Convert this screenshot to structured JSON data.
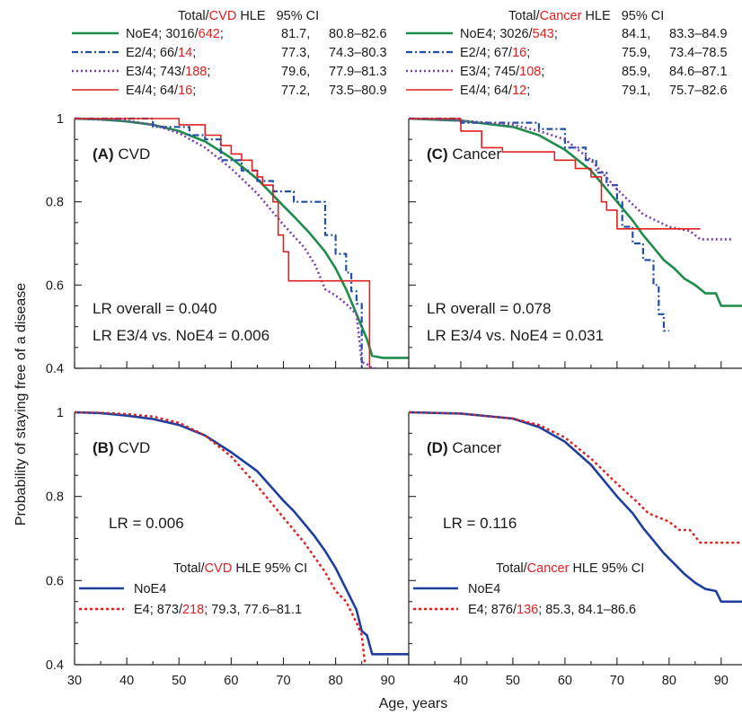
{
  "figure": {
    "ylabel": "Probability of staying free of a disease",
    "xlabel": "Age, years",
    "colors": {
      "NoE4": "#1e8c4a",
      "E2/4": "#1f4fa6",
      "E3/4": "#7b3fb0",
      "E4/4": "#e02020",
      "NoE4_pooled": "#1f3f9e",
      "E4_pooled": "#e02020",
      "highlight": "#e02020"
    }
  },
  "legend_top_left": {
    "header": {
      "pre": "Total/",
      "event": "CVD",
      "post": " HLE   95% CI"
    },
    "rows": [
      {
        "name": "NoE4;",
        "total": "3016/",
        "events": "642",
        "rest": ";",
        "hle": "81.7,",
        "ci": "80.8–82.6"
      },
      {
        "name": "E2/4;",
        "total": "66/",
        "events": "14",
        "rest": ";",
        "hle": "77.3,",
        "ci": "74.3–80.3"
      },
      {
        "name": "E3/4;",
        "total": "743/",
        "events": "188",
        "rest": ";",
        "hle": "79.6,",
        "ci": "77.9–81.3"
      },
      {
        "name": "E4/4;",
        "total": "64/",
        "events": "16",
        "rest": ";",
        "hle": "77.2,",
        "ci": "73.5–80.9"
      }
    ]
  },
  "legend_top_right": {
    "header": {
      "pre": "Total/",
      "event": "Cancer",
      "post": " HLE   95% CI"
    },
    "rows": [
      {
        "name": "NoE4;",
        "total": "3026/",
        "events": "543",
        "rest": ";",
        "hle": "84.1,",
        "ci": "83.3–84.9"
      },
      {
        "name": "E2/4;",
        "total": "67/",
        "events": "16",
        "rest": ";",
        "hle": "75.9,",
        "ci": "73.4–78.5"
      },
      {
        "name": "E3/4;",
        "total": "745/",
        "events": "108",
        "rest": ";",
        "hle": "85.9,",
        "ci": "84.6–87.1"
      },
      {
        "name": "E4/4;",
        "total": "64/",
        "events": "12",
        "rest": ";",
        "hle": "79.1,",
        "ci": "75.7–82.6"
      }
    ]
  },
  "chart_data": [
    {
      "type": "line",
      "panel": "A",
      "label_letter": "(A)",
      "label_text": " CVD",
      "annotations": [
        "LR overall = 0.040",
        "LR E3/4 vs. NoE4 = 0.006"
      ],
      "xlim": [
        30,
        94
      ],
      "ylim": [
        0.4,
        1.0
      ],
      "xticks": [
        30,
        40,
        50,
        60,
        70,
        80,
        90
      ],
      "yticks": [
        0.4,
        0.6,
        0.8,
        1
      ],
      "series": [
        {
          "name": "NoE4",
          "step": false,
          "x": [
            30,
            35,
            40,
            45,
            50,
            55,
            60,
            65,
            70,
            72,
            75,
            78,
            80,
            82,
            83,
            84,
            85,
            86,
            87,
            89,
            92,
            94
          ],
          "y": [
            1.0,
            0.998,
            0.993,
            0.985,
            0.97,
            0.945,
            0.905,
            0.855,
            0.79,
            0.765,
            0.725,
            0.68,
            0.64,
            0.59,
            0.56,
            0.53,
            0.5,
            0.47,
            0.43,
            0.425,
            0.425,
            0.425
          ]
        },
        {
          "name": "E2/4",
          "step": true,
          "x": [
            30,
            45,
            52,
            55,
            58,
            62,
            65,
            68,
            72,
            76,
            78,
            80,
            82,
            83,
            84,
            85
          ],
          "y": [
            1.0,
            0.98,
            0.96,
            0.95,
            0.9,
            0.875,
            0.85,
            0.825,
            0.8,
            0.8,
            0.72,
            0.675,
            0.63,
            0.585,
            0.555,
            0.4
          ]
        },
        {
          "name": "E3/4",
          "step": false,
          "x": [
            30,
            40,
            45,
            50,
            55,
            60,
            65,
            70,
            74,
            76,
            78,
            80,
            82,
            84,
            85,
            86,
            87,
            88
          ],
          "y": [
            1.0,
            0.995,
            0.985,
            0.965,
            0.93,
            0.88,
            0.82,
            0.745,
            0.69,
            0.65,
            0.59,
            0.575,
            0.555,
            0.53,
            0.415,
            0.41,
            0.4,
            0.4
          ]
        },
        {
          "name": "E4/4",
          "step": true,
          "x": [
            30,
            50,
            55,
            58,
            60,
            62,
            64,
            65,
            66,
            68,
            69,
            70,
            71,
            72,
            74,
            86,
            86.5
          ],
          "y": [
            1.0,
            0.985,
            0.96,
            0.935,
            0.915,
            0.9,
            0.875,
            0.86,
            0.84,
            0.8,
            0.72,
            0.68,
            0.61,
            0.61,
            0.61,
            0.61,
            0.4
          ]
        }
      ]
    },
    {
      "type": "line",
      "panel": "C",
      "label_letter": "(C)",
      "label_text": " Cancer",
      "annotations": [
        "LR overall = 0.078",
        "LR E3/4 vs. NoE4 = 0.031"
      ],
      "xlim": [
        30,
        94
      ],
      "ylim": [
        0.4,
        1.0
      ],
      "xticks": [
        30,
        40,
        50,
        60,
        70,
        80,
        90
      ],
      "yticks": [
        0.4,
        0.6,
        0.8,
        1
      ],
      "series": [
        {
          "name": "NoE4",
          "step": false,
          "x": [
            30,
            40,
            50,
            55,
            60,
            65,
            70,
            73,
            75,
            77,
            79,
            81,
            83,
            85,
            87,
            89,
            90,
            94
          ],
          "y": [
            1.0,
            0.995,
            0.98,
            0.96,
            0.925,
            0.875,
            0.8,
            0.755,
            0.72,
            0.69,
            0.66,
            0.64,
            0.615,
            0.6,
            0.58,
            0.58,
            0.55,
            0.55
          ]
        },
        {
          "name": "E2/4",
          "step": true,
          "x": [
            30,
            40,
            55,
            60,
            64,
            66,
            68,
            70,
            71,
            73,
            75,
            77,
            78,
            79,
            80
          ],
          "y": [
            1.0,
            0.99,
            0.975,
            0.93,
            0.9,
            0.87,
            0.84,
            0.8,
            0.74,
            0.7,
            0.66,
            0.6,
            0.53,
            0.49,
            0.49
          ]
        },
        {
          "name": "E3/4",
          "step": false,
          "x": [
            30,
            40,
            50,
            55,
            60,
            65,
            70,
            75,
            80,
            84,
            86,
            88,
            90,
            92
          ],
          "y": [
            1.0,
            0.995,
            0.985,
            0.97,
            0.95,
            0.9,
            0.83,
            0.77,
            0.74,
            0.73,
            0.71,
            0.71,
            0.71,
            0.71
          ]
        },
        {
          "name": "E4/4",
          "step": true,
          "x": [
            30,
            40,
            44,
            48,
            52,
            58,
            62,
            65,
            67,
            68,
            70,
            72,
            86
          ],
          "y": [
            1.0,
            0.97,
            0.93,
            0.92,
            0.92,
            0.9,
            0.88,
            0.86,
            0.8,
            0.78,
            0.735,
            0.735,
            0.735
          ]
        }
      ]
    },
    {
      "type": "line",
      "panel": "B",
      "label_letter": "(B)",
      "label_text": " CVD",
      "annotations": [
        "LR = 0.006"
      ],
      "legend": {
        "header": {
          "pre": "Total/",
          "event": "CVD",
          "post": " HLE   95% CI"
        },
        "rows": [
          {
            "text": "NoE4"
          },
          {
            "pre": "E4; 873/",
            "events": "218",
            "post": "; 79.3, 77.6–81.1"
          }
        ]
      },
      "xlim": [
        30,
        94
      ],
      "ylim": [
        0.4,
        1.0
      ],
      "xticks": [
        30,
        40,
        50,
        60,
        70,
        80,
        90
      ],
      "yticks": [
        0.4,
        0.6,
        0.8,
        1
      ],
      "series": [
        {
          "name": "NoE4",
          "step": false,
          "x": [
            30,
            35,
            40,
            45,
            50,
            55,
            60,
            65,
            70,
            72,
            74,
            76,
            78,
            80,
            82,
            84,
            85,
            86,
            87,
            89,
            94
          ],
          "y": [
            1.0,
            0.998,
            0.992,
            0.984,
            0.97,
            0.945,
            0.905,
            0.86,
            0.79,
            0.765,
            0.735,
            0.705,
            0.67,
            0.63,
            0.58,
            0.53,
            0.48,
            0.47,
            0.425,
            0.425,
            0.425
          ]
        },
        {
          "name": "E4",
          "step": false,
          "x": [
            30,
            35,
            40,
            45,
            50,
            55,
            60,
            65,
            68,
            70,
            72,
            74,
            76,
            78,
            80,
            82,
            84,
            85,
            86,
            87,
            94
          ],
          "y": [
            1.0,
            0.999,
            0.996,
            0.99,
            0.975,
            0.945,
            0.895,
            0.825,
            0.78,
            0.75,
            0.72,
            0.69,
            0.655,
            0.62,
            0.575,
            0.55,
            0.5,
            0.47,
            0.36,
            0.35,
            0.35
          ]
        }
      ]
    },
    {
      "type": "line",
      "panel": "D",
      "label_letter": "(D)",
      "label_text": " Cancer",
      "annotations": [
        "LR = 0.116"
      ],
      "legend": {
        "header": {
          "pre": "Total/",
          "event": "Cancer",
          "post": " HLE   95% CI"
        },
        "rows": [
          {
            "text": "NoE4"
          },
          {
            "pre": "E4; 876/",
            "events": "136",
            "post": "; 85.3, 84.1–86.6"
          }
        ]
      },
      "xlim": [
        30,
        94
      ],
      "ylim": [
        0.4,
        1.0
      ],
      "xticks": [
        30,
        40,
        50,
        60,
        70,
        80,
        90
      ],
      "yticks": [
        0.4,
        0.6,
        0.8,
        1
      ],
      "series": [
        {
          "name": "NoE4",
          "step": false,
          "x": [
            30,
            40,
            50,
            55,
            60,
            65,
            70,
            73,
            75,
            77,
            79,
            81,
            83,
            85,
            87,
            89,
            90,
            94
          ],
          "y": [
            1.0,
            0.997,
            0.985,
            0.965,
            0.93,
            0.875,
            0.8,
            0.76,
            0.725,
            0.695,
            0.665,
            0.64,
            0.615,
            0.595,
            0.58,
            0.575,
            0.55,
            0.55
          ]
        },
        {
          "name": "E4",
          "step": false,
          "x": [
            30,
            40,
            50,
            55,
            60,
            65,
            70,
            74,
            76,
            78,
            80,
            82,
            84,
            86,
            94
          ],
          "y": [
            1.0,
            0.997,
            0.985,
            0.97,
            0.94,
            0.89,
            0.83,
            0.785,
            0.76,
            0.75,
            0.74,
            0.72,
            0.72,
            0.69,
            0.69
          ]
        }
      ]
    }
  ]
}
